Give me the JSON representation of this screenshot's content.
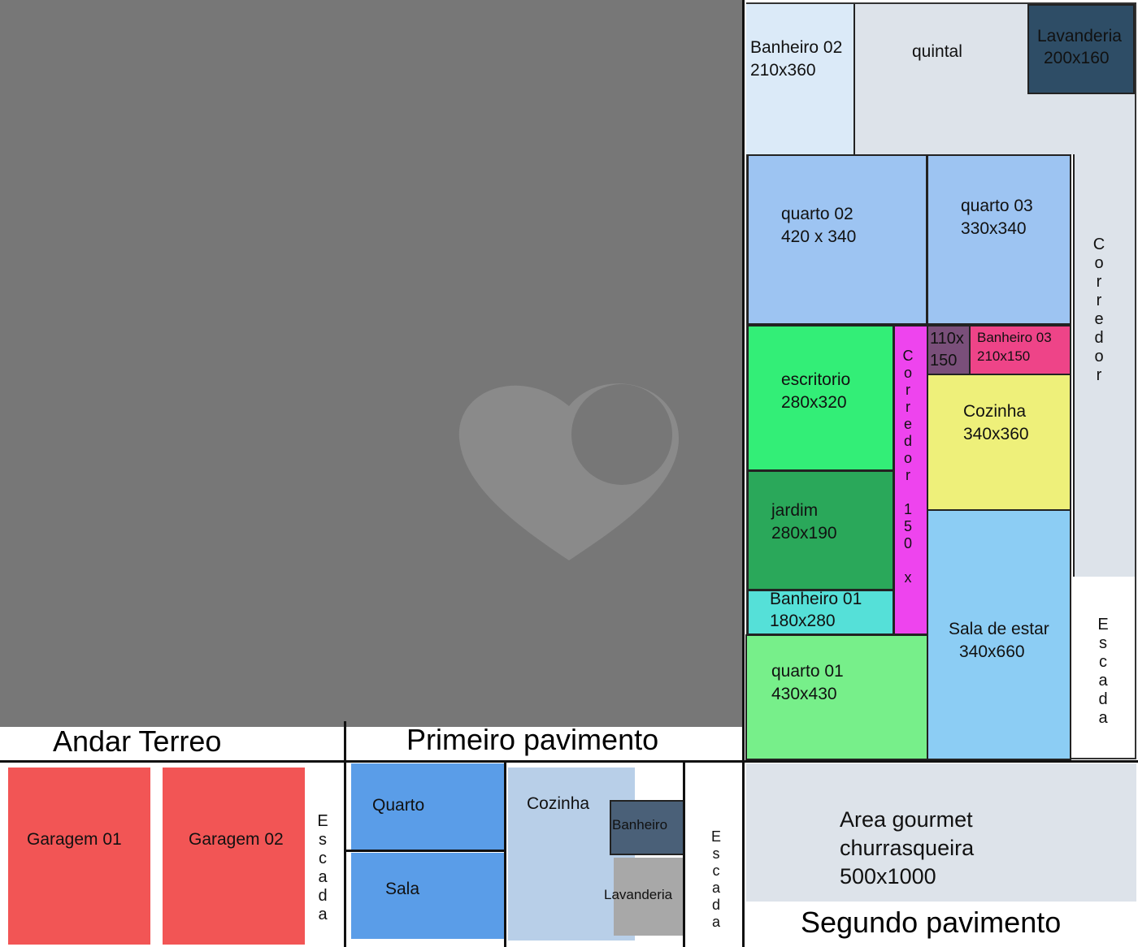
{
  "floors": {
    "ground": "Andar Terreo",
    "first": "Primeiro pavimento",
    "second": "Segundo pavimento"
  },
  "second_floor": {
    "banheiro02": [
      "Banheiro 02",
      "210x360"
    ],
    "quintal": [
      "quintal"
    ],
    "lavanderia": [
      "Lavanderia",
      "200x160"
    ],
    "quarto02": [
      "quarto  02",
      "420 x 340"
    ],
    "quarto03": [
      "quarto  03",
      "330x340"
    ],
    "corredor": "Corredor",
    "escritorio": [
      "escritorio",
      "280x320"
    ],
    "jardim": [
      "jardim",
      "280x190"
    ],
    "banheiro01": [
      "Banheiro 01",
      "180x280"
    ],
    "quarto01": [
      "quarto  01",
      "430x430"
    ],
    "corredor150": "Corredor 150 x",
    "small": [
      "110x",
      "150"
    ],
    "banheiro03": [
      "Banheiro 03",
      "210x150"
    ],
    "cozinha": [
      "Cozinha",
      "340x360"
    ],
    "sala": [
      "Sala de estar",
      "340x660"
    ],
    "escada": "Escada",
    "gourmet": [
      "Area gourmet",
      "churrasqueira",
      "500x1000"
    ]
  },
  "ground_floor": {
    "garagem01": "Garagem 01",
    "garagem02": "Garagem 02",
    "escada": "Escada"
  },
  "first_floor": {
    "quarto": "Quarto",
    "sala": "Sala",
    "cozinha": "Cozinha",
    "banheiro": "Banheiro",
    "lavanderia": "Lavanderia",
    "escada": "Escada"
  }
}
